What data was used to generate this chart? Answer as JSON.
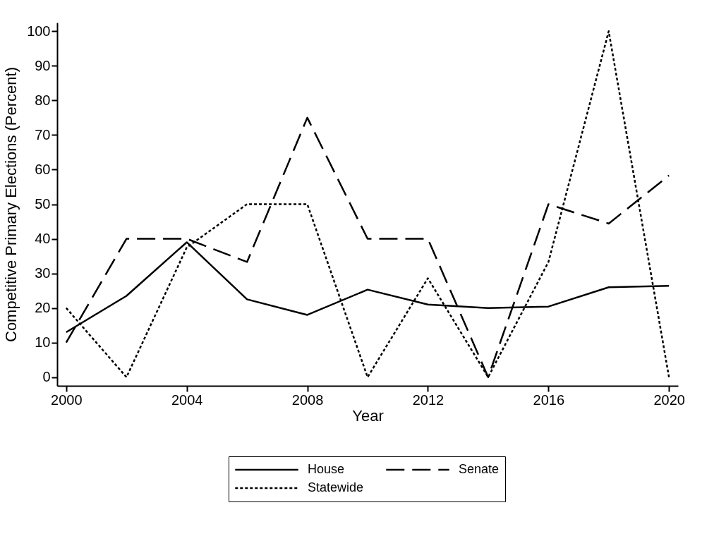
{
  "chart_data": {
    "type": "line",
    "xlabel": "Year",
    "ylabel": "Competitive Primary Elections (Percent)",
    "x": [
      2000,
      2002,
      2004,
      2006,
      2008,
      2010,
      2012,
      2014,
      2016,
      2018,
      2020
    ],
    "series": [
      {
        "name": "House",
        "color": "#000000",
        "line_style": "solid",
        "values": [
          13,
          23.5,
          39,
          22.5,
          18,
          25.3,
          21,
          20,
          20.4,
          26,
          26.4
        ]
      },
      {
        "name": "Senate",
        "color": "#000000",
        "line_style": "dashed",
        "values": [
          10,
          40,
          40,
          33.3,
          75,
          40,
          40,
          0,
          50,
          44.4,
          58.3
        ]
      },
      {
        "name": "Statewide",
        "color": "#000000",
        "line_style": "dotted",
        "values": [
          20,
          0,
          37.5,
          50,
          50,
          0,
          28.6,
          0,
          33.3,
          100,
          0
        ]
      }
    ],
    "xlim": [
      1999.7,
      2020.3
    ],
    "ylim": [
      -2.5,
      102.5
    ],
    "xticks": [
      2000,
      2004,
      2008,
      2012,
      2016,
      2020
    ],
    "yticks": [
      0,
      10,
      20,
      30,
      40,
      50,
      60,
      70,
      80,
      90,
      100
    ],
    "grid": false,
    "legend": "bottom",
    "marker": "none"
  }
}
